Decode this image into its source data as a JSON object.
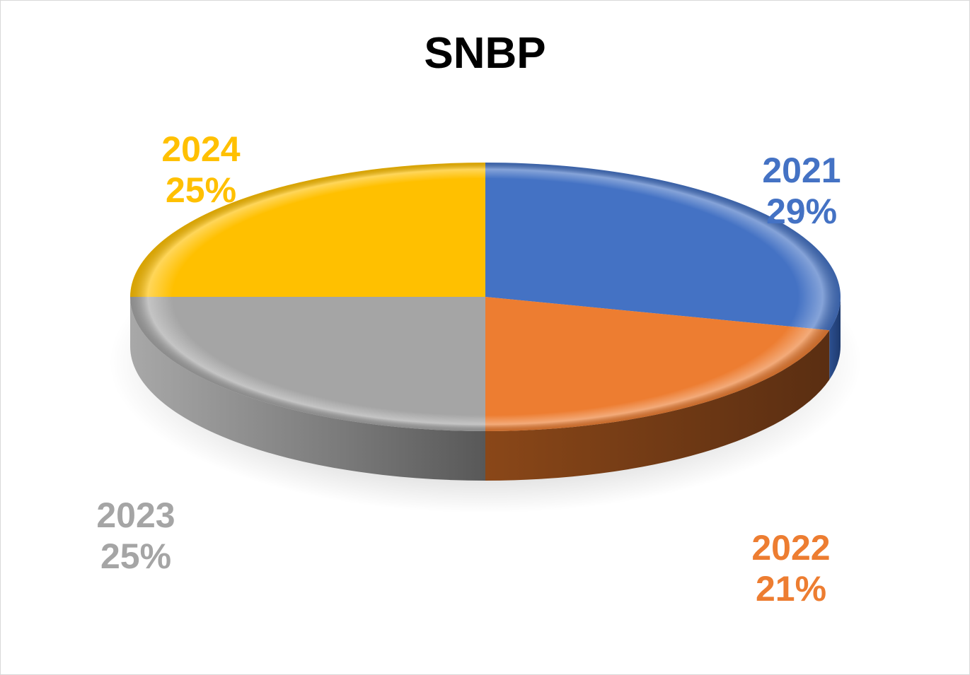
{
  "chart_data": {
    "type": "pie",
    "title": "SNBP",
    "slices": [
      {
        "label": "2021",
        "value": 29,
        "pct_label": "29%",
        "color": "#4472c4"
      },
      {
        "label": "2022",
        "value": 21,
        "pct_label": "21%",
        "color": "#ed7d31"
      },
      {
        "label": "2023",
        "value": 25,
        "pct_label": "25%",
        "color": "#a5a5a5"
      },
      {
        "label": "2024",
        "value": 25,
        "pct_label": "25%",
        "color": "#ffc000"
      }
    ],
    "style": "3d-oval"
  }
}
